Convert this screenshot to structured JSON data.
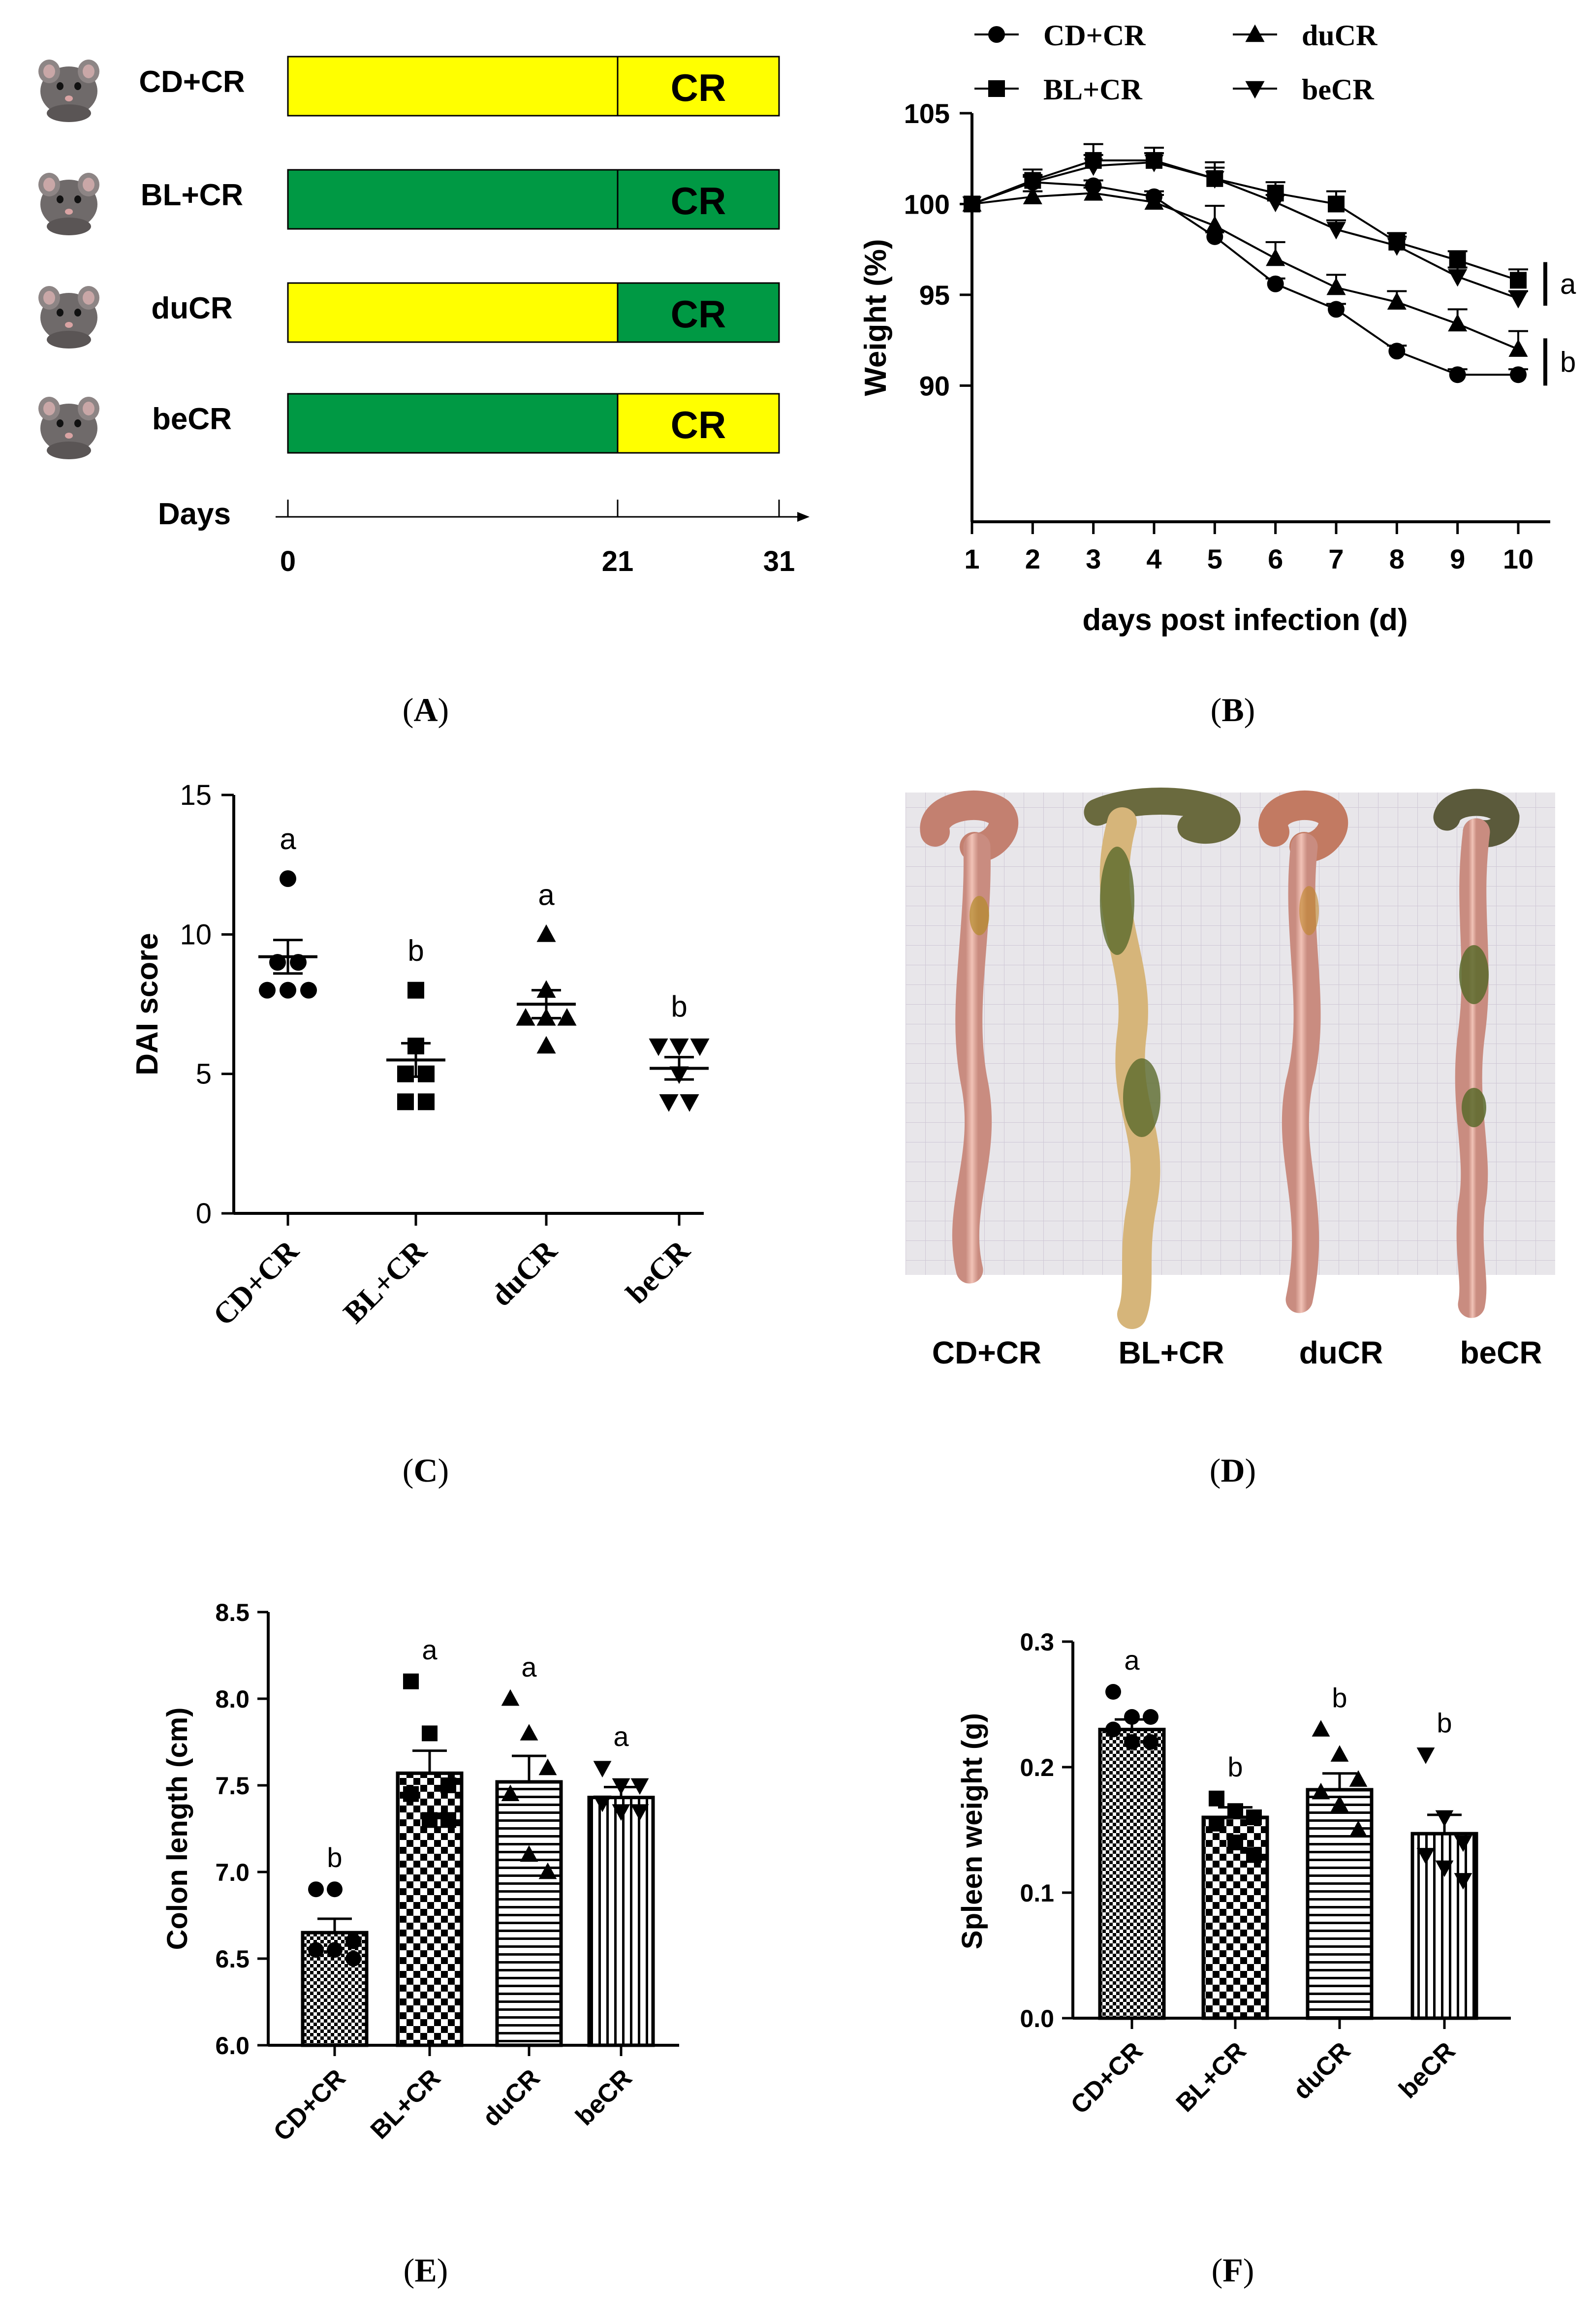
{
  "colors": {
    "yellow": "#ffff00",
    "green": "#009944",
    "black": "#000000"
  },
  "labels": {
    "A": "A",
    "B": "B",
    "C": "C",
    "D": "D",
    "E": "E",
    "F": "F"
  },
  "panel_a": {
    "rows": [
      {
        "group": "CD+CR",
        "first": "yellow",
        "second": "yellow",
        "tag": "CR"
      },
      {
        "group": "BL+CR",
        "first": "green",
        "second": "green",
        "tag": "CR"
      },
      {
        "group": "duCR",
        "first": "yellow",
        "second": "green",
        "tag": "CR"
      },
      {
        "group": "beCR",
        "first": "green",
        "second": "yellow",
        "tag": "CR"
      }
    ],
    "axis_label": "Days",
    "ticks": [
      "0",
      "21",
      "31"
    ],
    "tick_values": [
      0,
      21,
      31
    ],
    "mouse_icon": "mouse-icon"
  },
  "chart_data": [
    {
      "panel": "B",
      "type": "line",
      "xlabel": "days post infection (d)",
      "ylabel": "Weight (%)",
      "x": [
        1,
        2,
        3,
        4,
        5,
        6,
        7,
        8,
        9,
        10
      ],
      "xlim": [
        1,
        10
      ],
      "ylim": [
        82.5,
        105
      ],
      "yticks": [
        90,
        95,
        100,
        105
      ],
      "legend": [
        "CD+CR",
        "duCR",
        "BL+CR",
        "beCR"
      ],
      "series": [
        {
          "name": "CD+CR",
          "marker": "circle",
          "values": [
            100,
            101.2,
            101.0,
            100.4,
            98.2,
            95.6,
            94.2,
            91.9,
            90.6,
            90.6
          ],
          "err": [
            0,
            0.3,
            0.3,
            0.3,
            0.3,
            0.3,
            0.3,
            0.3,
            0.3,
            0.3
          ]
        },
        {
          "name": "BL+CR",
          "marker": "square",
          "values": [
            100,
            101.3,
            102.4,
            102.4,
            101.4,
            100.6,
            100.0,
            97.9,
            96.9,
            95.8
          ],
          "err": [
            0,
            0.6,
            0.9,
            0.7,
            0.9,
            0.6,
            0.7,
            0.5,
            0.5,
            0.6
          ]
        },
        {
          "name": "duCR",
          "marker": "triangle-up",
          "values": [
            100,
            100.4,
            100.6,
            100.1,
            98.8,
            97.0,
            95.4,
            94.6,
            93.4,
            92.0
          ],
          "err": [
            0,
            0.3,
            0.3,
            0.4,
            1.1,
            0.9,
            0.7,
            0.6,
            0.8,
            1.0
          ]
        },
        {
          "name": "beCR",
          "marker": "triangle-down",
          "values": [
            100,
            101.2,
            102.1,
            102.3,
            101.4,
            100.1,
            98.6,
            97.7,
            96.0,
            94.8
          ],
          "err": [
            0,
            0.4,
            0.6,
            0.5,
            0.6,
            0.4,
            0.5,
            0.5,
            0.5,
            0.4
          ]
        }
      ],
      "annotations": [
        "a",
        "b"
      ]
    },
    {
      "panel": "C",
      "type": "scatter",
      "ylabel": "DAI score",
      "categories": [
        "CD+CR",
        "BL+CR",
        "duCR",
        "beCR"
      ],
      "ylim": [
        0,
        15
      ],
      "yticks": [
        0,
        5,
        10,
        15
      ],
      "means": [
        9.2,
        5.5,
        7.5,
        5.2
      ],
      "sem": [
        0.6,
        0.6,
        0.5,
        0.4
      ],
      "letters": [
        "a",
        "b",
        "a",
        "b"
      ],
      "markers": [
        "circle",
        "square",
        "triangle-up",
        "triangle-down"
      ],
      "points": [
        [
          12,
          9,
          9,
          8,
          8,
          8
        ],
        [
          8,
          6,
          5,
          5,
          4,
          4
        ],
        [
          10,
          7,
          8,
          7,
          7,
          6
        ],
        [
          6,
          6,
          6,
          5,
          4,
          4
        ]
      ]
    },
    {
      "panel": "E",
      "type": "bar",
      "ylabel": "Colon length (cm)",
      "categories": [
        "CD+CR",
        "BL+CR",
        "duCR",
        "beCR"
      ],
      "ylim": [
        6.0,
        8.5
      ],
      "yticks": [
        6.0,
        6.5,
        7.0,
        7.5,
        8.0,
        8.5
      ],
      "values": [
        6.65,
        7.57,
        7.52,
        7.43
      ],
      "sem": [
        0.08,
        0.13,
        0.15,
        0.06
      ],
      "letters": [
        "b",
        "a",
        "a",
        "a"
      ],
      "points": [
        [
          6.9,
          6.9,
          6.6,
          6.55,
          6.55,
          6.5
        ],
        [
          8.1,
          7.8,
          7.5,
          7.45,
          7.3,
          7.3
        ],
        [
          8.0,
          7.8,
          7.6,
          7.45,
          7.1,
          7.0
        ],
        [
          7.6,
          7.5,
          7.5,
          7.4,
          7.35,
          7.35
        ]
      ],
      "patterns": [
        "checker-small",
        "checker-large",
        "horizontal-stripes",
        "vertical-stripes"
      ]
    },
    {
      "panel": "F",
      "type": "bar",
      "ylabel": "Spleen weight (g)",
      "categories": [
        "CD+CR",
        "BL+CR",
        "duCR",
        "beCR"
      ],
      "ylim": [
        0.0,
        0.3
      ],
      "yticks": [
        0.0,
        0.1,
        0.2,
        0.3
      ],
      "values": [
        0.23,
        0.16,
        0.182,
        0.147
      ],
      "sem": [
        0.008,
        0.008,
        0.013,
        0.015
      ],
      "letters": [
        "a",
        "b",
        "b",
        "b"
      ],
      "points": [
        [
          0.26,
          0.24,
          0.24,
          0.23,
          0.22,
          0.22
        ],
        [
          0.175,
          0.165,
          0.16,
          0.155,
          0.14,
          0.13
        ],
        [
          0.23,
          0.21,
          0.19,
          0.18,
          0.17,
          0.15
        ],
        [
          0.21,
          0.16,
          0.14,
          0.13,
          0.12,
          0.11
        ]
      ],
      "patterns": [
        "checker-small",
        "checker-large",
        "horizontal-stripes",
        "vertical-stripes"
      ]
    }
  ],
  "panel_d": {
    "image": "colon-photograph",
    "labels": [
      "CD+CR",
      "BL+CR",
      "duCR",
      "beCR"
    ]
  }
}
